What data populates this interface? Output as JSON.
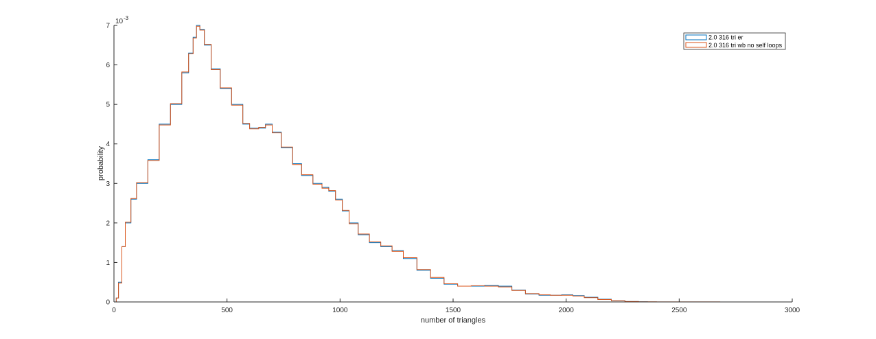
{
  "chart_data": {
    "type": "line",
    "style": "stairs",
    "xlabel": "number of triangles",
    "ylabel": "probability",
    "exponent_label": "10",
    "exponent_power": "-3",
    "xlim": [
      0,
      3000
    ],
    "ylim": [
      0,
      0.007
    ],
    "xticks": [
      0,
      500,
      1000,
      1500,
      2000,
      2500,
      3000
    ],
    "yticks": [
      0,
      0.001,
      0.002,
      0.003,
      0.004,
      0.005,
      0.006,
      0.007
    ],
    "ytick_labels": [
      "0",
      "1",
      "2",
      "3",
      "4",
      "5",
      "6",
      "7"
    ],
    "xtick_labels": [
      "0",
      "500",
      "1000",
      "1500",
      "2000",
      "2500",
      "3000"
    ],
    "grid": false,
    "legend_position": "top-right",
    "series": [
      {
        "name": "2.0 316 tri er",
        "color": "#0072BD",
        "x": [
          10,
          20,
          35,
          50,
          75,
          100,
          150,
          200,
          250,
          300,
          330,
          350,
          365,
          380,
          400,
          430,
          470,
          520,
          570,
          600,
          640,
          670,
          700,
          740,
          790,
          830,
          880,
          920,
          950,
          980,
          1010,
          1040,
          1080,
          1130,
          1180,
          1230,
          1280,
          1340,
          1400,
          1460,
          1520,
          1580,
          1640,
          1700,
          1760,
          1820,
          1880,
          1930,
          1980,
          2030,
          2080,
          2140,
          2200,
          2260,
          2320,
          2360
        ],
        "y": [
          0.0001,
          0.0005,
          0.0014,
          0.002,
          0.0026,
          0.003,
          0.0036,
          0.0045,
          0.005,
          0.0058,
          0.0063,
          0.0067,
          0.007,
          0.0069,
          0.0065,
          0.0059,
          0.0054,
          0.005,
          0.0045,
          0.0044,
          0.0044,
          0.0045,
          0.0043,
          0.0039,
          0.0035,
          0.0032,
          0.003,
          0.0029,
          0.0028,
          0.0026,
          0.0023,
          0.002,
          0.0017,
          0.0015,
          0.0014,
          0.0013,
          0.0011,
          0.0008,
          0.0006,
          0.00045,
          0.0004,
          0.0004,
          0.00042,
          0.0004,
          0.0003,
          0.0002,
          0.00017,
          0.00017,
          0.00018,
          0.00016,
          0.00012,
          7e-05,
          3e-05,
          1e-05,
          5e-06,
          0
        ]
      },
      {
        "name": "2.0 316 tri wb no self loops",
        "color": "#D95319",
        "x": [
          10,
          20,
          35,
          50,
          75,
          100,
          150,
          200,
          250,
          300,
          330,
          350,
          365,
          380,
          400,
          430,
          470,
          520,
          570,
          600,
          640,
          670,
          700,
          740,
          790,
          830,
          880,
          920,
          950,
          980,
          1010,
          1040,
          1080,
          1130,
          1180,
          1230,
          1280,
          1340,
          1400,
          1460,
          1520,
          1580,
          1640,
          1700,
          1760,
          1820,
          1880,
          1930,
          1980,
          2030,
          2080,
          2140,
          2200,
          2260,
          2320,
          2400,
          2500,
          2680
        ],
        "y": [
          0.0001,
          0.00048,
          0.0014,
          0.00202,
          0.00262,
          0.00302,
          0.00358,
          0.00448,
          0.00502,
          0.00582,
          0.00628,
          0.00668,
          0.00698,
          0.00688,
          0.00652,
          0.00588,
          0.00542,
          0.00498,
          0.00452,
          0.00438,
          0.00442,
          0.00448,
          0.00428,
          0.00392,
          0.00348,
          0.00322,
          0.00298,
          0.00288,
          0.00282,
          0.00258,
          0.00232,
          0.00198,
          0.00172,
          0.00152,
          0.00142,
          0.00128,
          0.00112,
          0.00082,
          0.00062,
          0.00046,
          0.0004,
          0.00041,
          0.0004,
          0.00038,
          0.00029,
          0.00021,
          0.00018,
          0.00017,
          0.00017,
          0.00015,
          0.00011,
          6e-05,
          3e-05,
          1e-05,
          5e-06,
          2e-06,
          1e-06,
          0
        ]
      }
    ]
  }
}
